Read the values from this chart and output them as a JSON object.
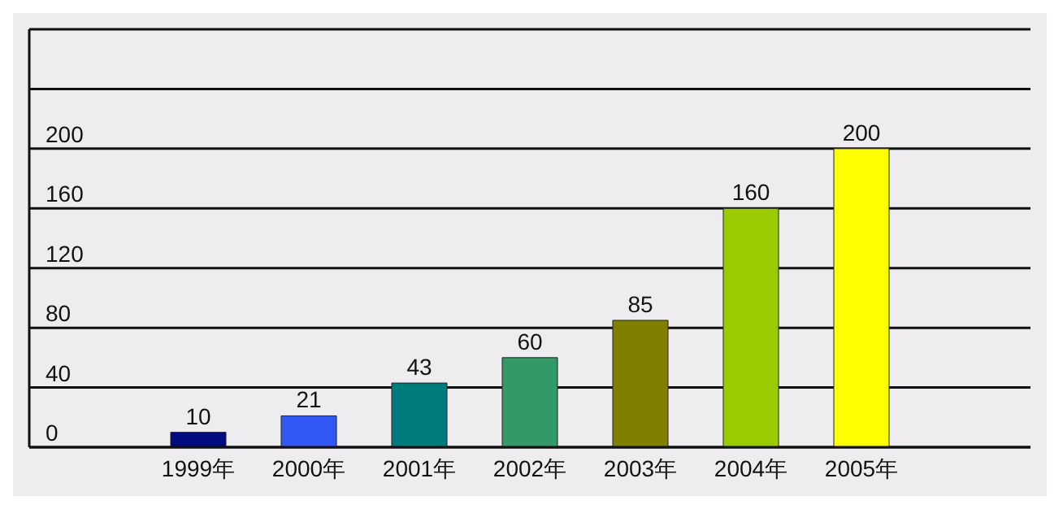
{
  "chart_data": {
    "type": "bar",
    "categories": [
      "1999年",
      "2000年",
      "2001年",
      "2002年",
      "2003年",
      "2004年",
      "2005年"
    ],
    "values": [
      10,
      21,
      43,
      60,
      85,
      160,
      200
    ],
    "colors": [
      "#000c80",
      "#3158f5",
      "#007b7b",
      "#339966",
      "#7f7f00",
      "#99cc00",
      "#ffff00"
    ],
    "ylim": [
      0,
      280
    ],
    "yticks": [
      0,
      40,
      80,
      120,
      160,
      200,
      {
        "value": 240,
        "label": null
      },
      {
        "value": 280,
        "label": null
      }
    ],
    "grid": "y",
    "data_labels": true
  }
}
